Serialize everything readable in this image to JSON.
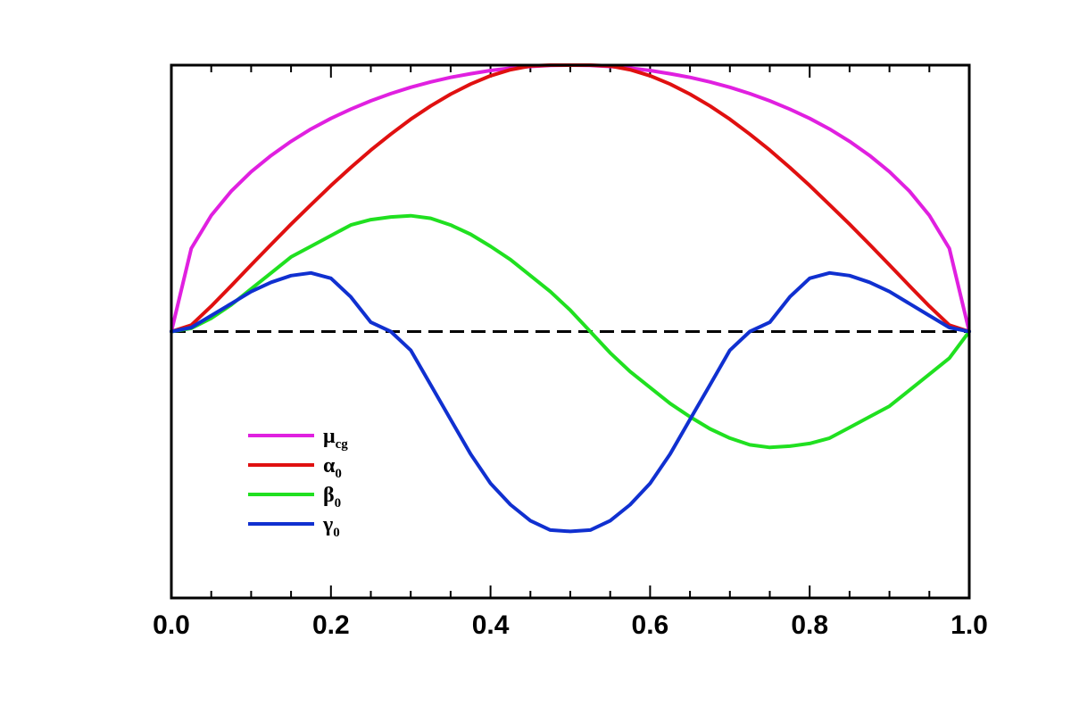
{
  "chart_data": {
    "type": "line",
    "xlim": [
      0.0,
      1.0
    ],
    "ylim": [
      -1.0,
      1.0
    ],
    "x_tick_labels": [
      "0.0",
      "0.2",
      "0.4",
      "0.6",
      "0.8",
      "1.0"
    ],
    "x_ticks": [
      0.0,
      0.2,
      0.4,
      0.6,
      0.8,
      1.0
    ],
    "y_axis_labels": false,
    "grid": false,
    "legend_position": "lower-left",
    "reference_line": {
      "y": 0,
      "style": "dashed",
      "color": "#000000"
    },
    "x": [
      0.0,
      0.025,
      0.05,
      0.075,
      0.1,
      0.125,
      0.15,
      0.175,
      0.2,
      0.225,
      0.25,
      0.275,
      0.3,
      0.325,
      0.35,
      0.375,
      0.4,
      0.425,
      0.45,
      0.475,
      0.5,
      0.525,
      0.55,
      0.575,
      0.6,
      0.625,
      0.65,
      0.675,
      0.7,
      0.725,
      0.75,
      0.775,
      0.8,
      0.825,
      0.85,
      0.875,
      0.9,
      0.925,
      0.95,
      0.975,
      1.0
    ],
    "series": [
      {
        "name": "μ",
        "name_sub": "cg",
        "color": "#e020e0",
        "values": [
          0.0,
          0.312,
          0.436,
          0.527,
          0.6,
          0.661,
          0.714,
          0.76,
          0.8,
          0.835,
          0.866,
          0.893,
          0.917,
          0.937,
          0.954,
          0.968,
          0.98,
          0.989,
          0.995,
          0.999,
          1.0,
          0.999,
          0.995,
          0.989,
          0.98,
          0.968,
          0.954,
          0.937,
          0.917,
          0.893,
          0.866,
          0.835,
          0.8,
          0.76,
          0.714,
          0.661,
          0.6,
          0.527,
          0.436,
          0.312,
          0.0
        ]
      },
      {
        "name": "α",
        "name_sub": "0",
        "color": "#e01010",
        "values": [
          0.0,
          0.024,
          0.095,
          0.172,
          0.25,
          0.327,
          0.403,
          0.476,
          0.548,
          0.616,
          0.681,
          0.741,
          0.797,
          0.847,
          0.891,
          0.929,
          0.96,
          0.983,
          0.997,
          1.0,
          1.0,
          1.0,
          0.997,
          0.983,
          0.96,
          0.929,
          0.891,
          0.847,
          0.797,
          0.741,
          0.681,
          0.616,
          0.548,
          0.476,
          0.403,
          0.327,
          0.25,
          0.172,
          0.095,
          0.024,
          0.0
        ]
      },
      {
        "name": "β",
        "name_sub": "0",
        "color": "#20e020",
        "values": [
          0.0,
          0.012,
          0.05,
          0.1,
          0.16,
          0.22,
          0.28,
          0.32,
          0.36,
          0.4,
          0.42,
          0.43,
          0.435,
          0.425,
          0.4,
          0.365,
          0.32,
          0.27,
          0.21,
          0.15,
          0.08,
          0.0,
          -0.08,
          -0.15,
          -0.21,
          -0.27,
          -0.32,
          -0.365,
          -0.4,
          -0.425,
          -0.435,
          -0.43,
          -0.42,
          -0.4,
          -0.36,
          -0.32,
          -0.28,
          -0.22,
          -0.16,
          -0.1,
          0.0
        ]
      },
      {
        "name": "γ",
        "name_sub": "0",
        "color": "#1030d0",
        "values": [
          0.0,
          0.015,
          0.06,
          0.105,
          0.15,
          0.185,
          0.21,
          0.22,
          0.2,
          0.13,
          0.035,
          0.0,
          -0.07,
          -0.2,
          -0.33,
          -0.46,
          -0.57,
          -0.65,
          -0.71,
          -0.745,
          -0.75,
          -0.745,
          -0.71,
          -0.65,
          -0.57,
          -0.46,
          -0.33,
          -0.2,
          -0.07,
          0.0,
          0.035,
          0.13,
          0.2,
          0.22,
          0.21,
          0.185,
          0.15,
          0.105,
          0.06,
          0.015,
          0.0
        ]
      }
    ]
  }
}
